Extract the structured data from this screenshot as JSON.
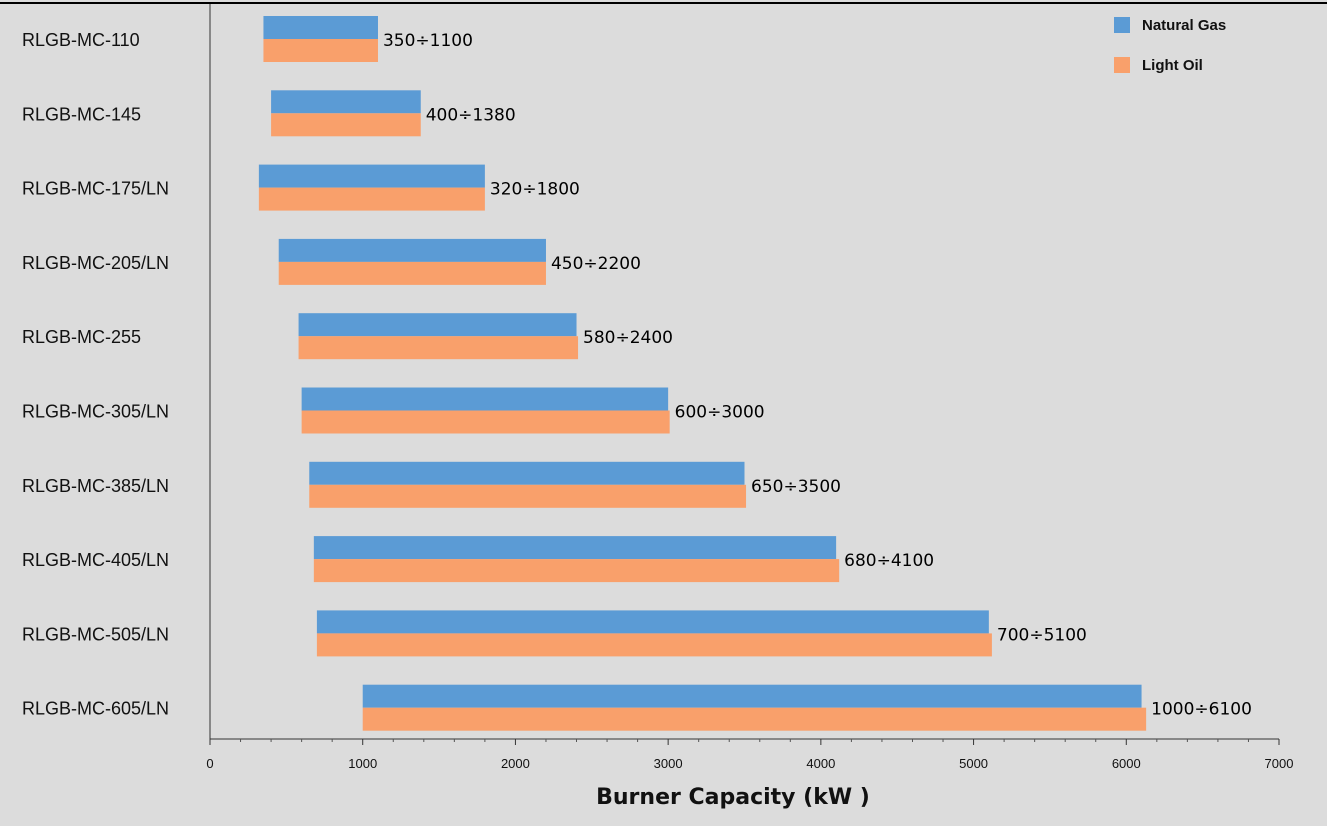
{
  "chart_data": {
    "type": "bar",
    "orientation": "horizontal",
    "bar_mode": "floating-range",
    "categories": [
      "RLGB-MC-110",
      "RLGB-MC-145",
      "RLGB-MC-175/LN",
      "RLGB-MC-205/LN",
      "RLGB-MC-255",
      "RLGB-MC-305/LN",
      "RLGB-MC-385/LN",
      "RLGB-MC-405/LN",
      "RLGB-MC-505/LN",
      "RLGB-MC-605/LN"
    ],
    "series": [
      {
        "name": "Natural Gas",
        "color": "#5b9bd5",
        "ranges": [
          [
            350,
            1100
          ],
          [
            400,
            1380
          ],
          [
            320,
            1800
          ],
          [
            450,
            2200
          ],
          [
            580,
            2400
          ],
          [
            600,
            3000
          ],
          [
            650,
            3500
          ],
          [
            680,
            4100
          ],
          [
            700,
            5100
          ],
          [
            1000,
            6100
          ]
        ]
      },
      {
        "name": "Light Oil",
        "color": "#f9a06b",
        "ranges": [
          [
            350,
            1100
          ],
          [
            400,
            1380
          ],
          [
            320,
            1800
          ],
          [
            450,
            2200
          ],
          [
            580,
            2410
          ],
          [
            600,
            3010
          ],
          [
            650,
            3510
          ],
          [
            680,
            4120
          ],
          [
            700,
            5120
          ],
          [
            1000,
            6130
          ]
        ]
      }
    ],
    "range_labels": [
      "350÷1100",
      "400÷1380",
      "320÷1800",
      "450÷2200",
      "580÷2400",
      "600÷3000",
      "650÷3500",
      "680÷4100",
      "700÷5100",
      "1000÷6100"
    ],
    "xlabel": "Burner Capacity (kW )",
    "ylabel": "",
    "title": "",
    "xlim": [
      0,
      7000
    ],
    "x_ticks": [
      0,
      1000,
      2000,
      3000,
      4000,
      5000,
      6000,
      7000
    ],
    "grid": false,
    "legend_position": "top-right"
  }
}
